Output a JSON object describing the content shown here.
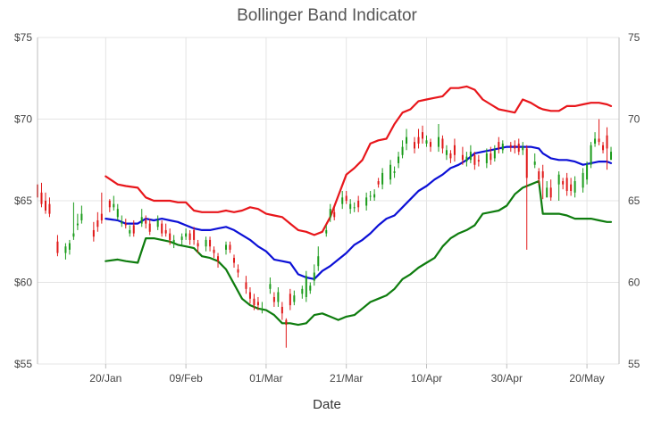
{
  "chart_data": {
    "type": "line",
    "title": "Bollinger Band Indicator",
    "xlabel": "Date",
    "ylabel": "",
    "ylim": [
      55,
      75
    ],
    "y_ticks_left": [
      "$55",
      "$60",
      "$65",
      "$70",
      "$75"
    ],
    "y_ticks_right": [
      "55",
      "60",
      "65",
      "70",
      "75"
    ],
    "x_ticks": [
      "20/Jan",
      "09/Feb",
      "01/Mar",
      "21/Mar",
      "10/Apr",
      "30/Apr",
      "20/May"
    ],
    "xlim_days": [
      -17,
      128
    ],
    "grid": true,
    "legend": "none",
    "colors": {
      "upper": "#e8161b",
      "middle": "#0c10d6",
      "lower": "#0e7c0e",
      "up_candle": "#1a9b1a",
      "down_candle": "#e01818",
      "grid": "#e4e4e4",
      "axis": "#bdbdbd"
    },
    "series": [
      {
        "role": "upper",
        "x": [
          0,
          3,
          5,
          8,
          10,
          12,
          14,
          16,
          18,
          20,
          22,
          24,
          26,
          28,
          30,
          32,
          34,
          36,
          38,
          40,
          42,
          44,
          46,
          48,
          50,
          52,
          54,
          56,
          58,
          60,
          62,
          64,
          66,
          68,
          70,
          72,
          74,
          76,
          78,
          80,
          82,
          84,
          86,
          88,
          90,
          92,
          94,
          96,
          98,
          100,
          102,
          104,
          106,
          108,
          109,
          111,
          113,
          115,
          117,
          119,
          121,
          123,
          125,
          126
        ],
        "values": [
          66.5,
          66.0,
          65.9,
          65.8,
          65.2,
          65.0,
          65.0,
          65.0,
          64.9,
          64.9,
          64.4,
          64.3,
          64.3,
          64.3,
          64.4,
          64.3,
          64.4,
          64.6,
          64.5,
          64.2,
          64.1,
          64.0,
          63.6,
          63.2,
          63.1,
          62.9,
          63.1,
          64.0,
          65.3,
          66.6,
          67.0,
          67.5,
          68.5,
          68.7,
          68.8,
          69.7,
          70.4,
          70.6,
          71.1,
          71.2,
          71.3,
          71.4,
          71.9,
          71.9,
          72.0,
          71.8,
          71.2,
          70.9,
          70.6,
          70.5,
          70.4,
          71.2,
          71.0,
          70.7,
          70.6,
          70.5,
          70.5,
          70.8,
          70.8,
          70.9,
          71.0,
          71.0,
          70.9,
          70.8
        ]
      },
      {
        "role": "middle",
        "x": [
          0,
          3,
          5,
          8,
          10,
          12,
          14,
          16,
          18,
          20,
          22,
          24,
          26,
          28,
          30,
          32,
          34,
          36,
          38,
          40,
          42,
          44,
          46,
          48,
          50,
          52,
          54,
          56,
          58,
          60,
          62,
          64,
          66,
          68,
          70,
          72,
          74,
          76,
          78,
          80,
          82,
          84,
          86,
          88,
          90,
          92,
          94,
          96,
          98,
          100,
          102,
          104,
          106,
          108,
          109,
          111,
          113,
          115,
          117,
          119,
          121,
          123,
          125,
          126
        ],
        "values": [
          63.9,
          63.8,
          63.6,
          63.6,
          63.9,
          63.8,
          63.9,
          63.8,
          63.7,
          63.5,
          63.3,
          63.2,
          63.2,
          63.3,
          63.4,
          63.2,
          62.9,
          62.6,
          62.2,
          61.9,
          61.4,
          61.3,
          61.2,
          60.5,
          60.3,
          60.2,
          60.7,
          61.0,
          61.4,
          61.8,
          62.3,
          62.6,
          63.0,
          63.5,
          63.9,
          64.1,
          64.6,
          65.1,
          65.6,
          65.9,
          66.3,
          66.6,
          67.0,
          67.2,
          67.5,
          67.9,
          68.0,
          68.1,
          68.2,
          68.3,
          68.3,
          68.3,
          68.3,
          68.2,
          67.9,
          67.6,
          67.5,
          67.5,
          67.4,
          67.2,
          67.3,
          67.4,
          67.4,
          67.3
        ]
      },
      {
        "role": "lower",
        "x": [
          0,
          3,
          5,
          8,
          10,
          12,
          14,
          16,
          18,
          20,
          22,
          24,
          26,
          28,
          30,
          32,
          34,
          36,
          38,
          40,
          42,
          44,
          46,
          48,
          50,
          52,
          54,
          56,
          58,
          60,
          62,
          64,
          66,
          68,
          70,
          72,
          74,
          76,
          78,
          80,
          82,
          84,
          86,
          88,
          90,
          92,
          94,
          96,
          98,
          100,
          102,
          104,
          106,
          108,
          109,
          111,
          113,
          115,
          117,
          119,
          121,
          123,
          125,
          126
        ],
        "values": [
          61.3,
          61.4,
          61.3,
          61.2,
          62.7,
          62.7,
          62.6,
          62.5,
          62.3,
          62.2,
          62.1,
          61.6,
          61.5,
          61.3,
          60.8,
          59.9,
          59.0,
          58.6,
          58.4,
          58.3,
          58.0,
          57.5,
          57.5,
          57.4,
          57.5,
          58.0,
          58.1,
          57.9,
          57.7,
          57.9,
          58.0,
          58.4,
          58.8,
          59.0,
          59.2,
          59.6,
          60.2,
          60.5,
          60.9,
          61.2,
          61.5,
          62.2,
          62.7,
          63.0,
          63.2,
          63.5,
          64.2,
          64.3,
          64.4,
          64.7,
          65.4,
          65.8,
          66.0,
          66.2,
          64.2,
          64.2,
          64.2,
          64.1,
          63.9,
          63.9,
          63.9,
          63.8,
          63.7,
          63.7
        ]
      }
    ],
    "ohlc": {
      "x": [
        -17,
        -16,
        -15,
        -14,
        -12,
        -10,
        -9,
        -8,
        -7,
        -6,
        -3,
        -2,
        -1,
        1,
        2,
        3,
        4,
        5,
        6,
        7,
        9,
        10,
        11,
        13,
        14,
        15,
        16,
        17,
        19,
        20,
        21,
        22,
        23,
        25,
        26,
        27,
        28,
        30,
        31,
        32,
        33,
        35,
        36,
        37,
        38,
        39,
        41,
        42,
        43,
        44,
        45,
        46,
        47,
        49,
        50,
        51,
        52,
        53,
        55,
        56,
        57,
        59,
        60,
        61,
        62,
        63,
        65,
        66,
        67,
        68,
        69,
        71,
        72,
        73,
        74,
        75,
        77,
        78,
        79,
        80,
        81,
        83,
        84,
        85,
        86,
        87,
        89,
        90,
        91,
        92,
        93,
        95,
        96,
        97,
        98,
        99,
        101,
        102,
        103,
        104,
        105,
        107,
        108,
        109,
        110,
        111,
        113,
        114,
        115,
        116,
        117,
        119,
        120,
        121,
        122,
        123,
        124,
        125,
        126
      ],
      "open": [
        66.0,
        65.5,
        65.0,
        64.8,
        62.5,
        61.8,
        62.0,
        62.8,
        63.5,
        63.8,
        63.2,
        63.8,
        64.2,
        65.0,
        64.6,
        64.0,
        63.6,
        63.6,
        63.0,
        63.5,
        63.6,
        63.8,
        63.6,
        63.4,
        63.6,
        63.2,
        63.0,
        62.4,
        62.6,
        62.8,
        63.0,
        63.2,
        62.4,
        62.2,
        62.6,
        62.0,
        61.6,
        62.0,
        62.3,
        61.5,
        60.8,
        60.0,
        59.4,
        59.0,
        58.8,
        58.4,
        59.6,
        59.1,
        58.8,
        58.5,
        57.7,
        59.3,
        58.8,
        59.3,
        59.1,
        59.5,
        60.1,
        61.0,
        63.0,
        64.0,
        64.3,
        64.8,
        65.3,
        64.5,
        64.6,
        65.0,
        64.7,
        65.3,
        65.2,
        66.2,
        66.0,
        66.3,
        66.7,
        67.3,
        67.8,
        68.5,
        68.6,
        68.9,
        69.2,
        68.5,
        68.6,
        68.3,
        68.8,
        67.8,
        67.9,
        68.4,
        67.8,
        67.4,
        67.5,
        67.8,
        67.5,
        67.3,
        67.9,
        67.6,
        68.6,
        68.1,
        68.4,
        68.4,
        68.5,
        68.1,
        68.2,
        67.2,
        66.8,
        66.8,
        65.2,
        65.8,
        66.0,
        66.2,
        66.4,
        66.0,
        65.5,
        65.8,
        66.3,
        67.2,
        68.5,
        68.8,
        68.4,
        69.0,
        67.5
      ],
      "close": [
        65.2,
        64.8,
        64.4,
        64.2,
        61.8,
        62.2,
        62.4,
        63.0,
        63.6,
        64.2,
        62.8,
        63.4,
        63.8,
        64.6,
        64.8,
        64.5,
        63.7,
        63.5,
        63.2,
        63.0,
        64.0,
        63.6,
        63.1,
        63.8,
        63.0,
        63.0,
        62.6,
        62.6,
        62.8,
        63.0,
        62.6,
        62.6,
        62.2,
        62.6,
        62.2,
        61.8,
        61.3,
        62.3,
        62.0,
        61.2,
        60.6,
        59.6,
        59.0,
        58.6,
        58.6,
        58.4,
        59.9,
        58.8,
        59.4,
        58.1,
        57.4,
        58.6,
        59.2,
        59.6,
        60.4,
        59.8,
        60.6,
        61.6,
        63.2,
        64.5,
        64.0,
        65.2,
        65.0,
        64.8,
        64.6,
        64.6,
        65.2,
        65.3,
        65.4,
        66.0,
        66.7,
        67.2,
        66.8,
        67.7,
        68.3,
        68.9,
        68.2,
        68.5,
        68.8,
        68.7,
        68.3,
        68.9,
        68.2,
        68.1,
        67.6,
        67.8,
        67.5,
        67.7,
        68.0,
        67.2,
        67.4,
        67.9,
        67.5,
        68.1,
        68.2,
        68.5,
        68.3,
        68.2,
        68.0,
        68.3,
        66.4,
        67.4,
        66.3,
        66.4,
        65.8,
        65.2,
        66.6,
        66.0,
        65.6,
        65.6,
        66.2,
        66.7,
        67.2,
        68.4,
        68.8,
        68.6,
        68.1,
        68.2,
        68.0
      ],
      "high": [
        67.3,
        66.1,
        65.5,
        65.2,
        62.9,
        62.4,
        62.6,
        64.9,
        64.2,
        64.7,
        63.7,
        64.3,
        65.5,
        65.1,
        65.3,
        64.8,
        64.1,
        63.9,
        63.5,
        63.8,
        64.5,
        64.1,
        63.9,
        64.1,
        63.8,
        63.6,
        63.3,
        62.9,
        63.0,
        63.3,
        63.2,
        63.4,
        62.6,
        62.8,
        62.8,
        62.2,
        61.8,
        62.5,
        62.5,
        61.7,
        61.1,
        60.4,
        59.7,
        59.3,
        59.1,
        58.8,
        60.3,
        59.4,
        59.7,
        58.8,
        57.8,
        59.6,
        59.5,
        59.8,
        60.7,
        60.0,
        61.1,
        62.2,
        63.5,
        64.8,
        64.7,
        65.6,
        65.6,
        65.1,
        64.9,
        65.3,
        65.5,
        65.6,
        65.7,
        66.4,
        67.0,
        67.5,
        67.1,
        68.0,
        68.7,
        69.4,
        68.9,
        69.4,
        69.6,
        69.0,
        68.8,
        69.7,
        69.0,
        68.4,
        68.1,
        68.8,
        68.3,
        68.0,
        68.4,
        68.0,
        67.8,
        68.2,
        68.3,
        68.4,
        68.9,
        68.7,
        68.6,
        68.7,
        68.8,
        68.6,
        68.4,
        67.9,
        67.0,
        67.2,
        66.2,
        66.3,
        66.8,
        66.4,
        66.7,
        66.4,
        66.5,
        67.0,
        67.4,
        68.6,
        69.2,
        70.0,
        68.6,
        69.5,
        68.3
      ],
      "low": [
        65.0,
        64.6,
        64.2,
        64.0,
        61.6,
        61.4,
        61.7,
        62.6,
        63.2,
        63.6,
        62.5,
        63.1,
        63.6,
        64.3,
        64.4,
        63.8,
        63.4,
        63.3,
        62.8,
        62.8,
        63.4,
        63.3,
        62.9,
        63.2,
        62.8,
        62.8,
        62.3,
        62.1,
        62.3,
        62.6,
        62.3,
        62.3,
        61.8,
        61.9,
        61.9,
        61.5,
        60.9,
        61.7,
        61.8,
        60.9,
        60.3,
        59.3,
        58.7,
        58.3,
        58.3,
        58.1,
        59.3,
        58.5,
        58.5,
        57.7,
        56.0,
        58.3,
        58.6,
        59.0,
        58.8,
        59.3,
        59.8,
        60.7,
        62.8,
        63.7,
        63.8,
        64.5,
        64.8,
        64.2,
        64.3,
        64.3,
        64.4,
        65.0,
        65.0,
        65.8,
        65.7,
        66.0,
        66.4,
        67.0,
        67.6,
        68.1,
        67.9,
        68.2,
        68.5,
        68.3,
        68.0,
        68.0,
        67.9,
        67.5,
        67.3,
        67.4,
        67.2,
        67.1,
        67.3,
        66.9,
        67.1,
        67.0,
        67.2,
        67.4,
        67.9,
        67.9,
        68.0,
        67.9,
        67.8,
        67.8,
        62.0,
        67.0,
        66.0,
        65.1,
        65.5,
        65.0,
        65.0,
        65.7,
        65.3,
        65.3,
        65.2,
        65.5,
        66.0,
        67.0,
        68.3,
        68.4,
        67.9,
        66.9,
        67.7
      ]
    }
  }
}
